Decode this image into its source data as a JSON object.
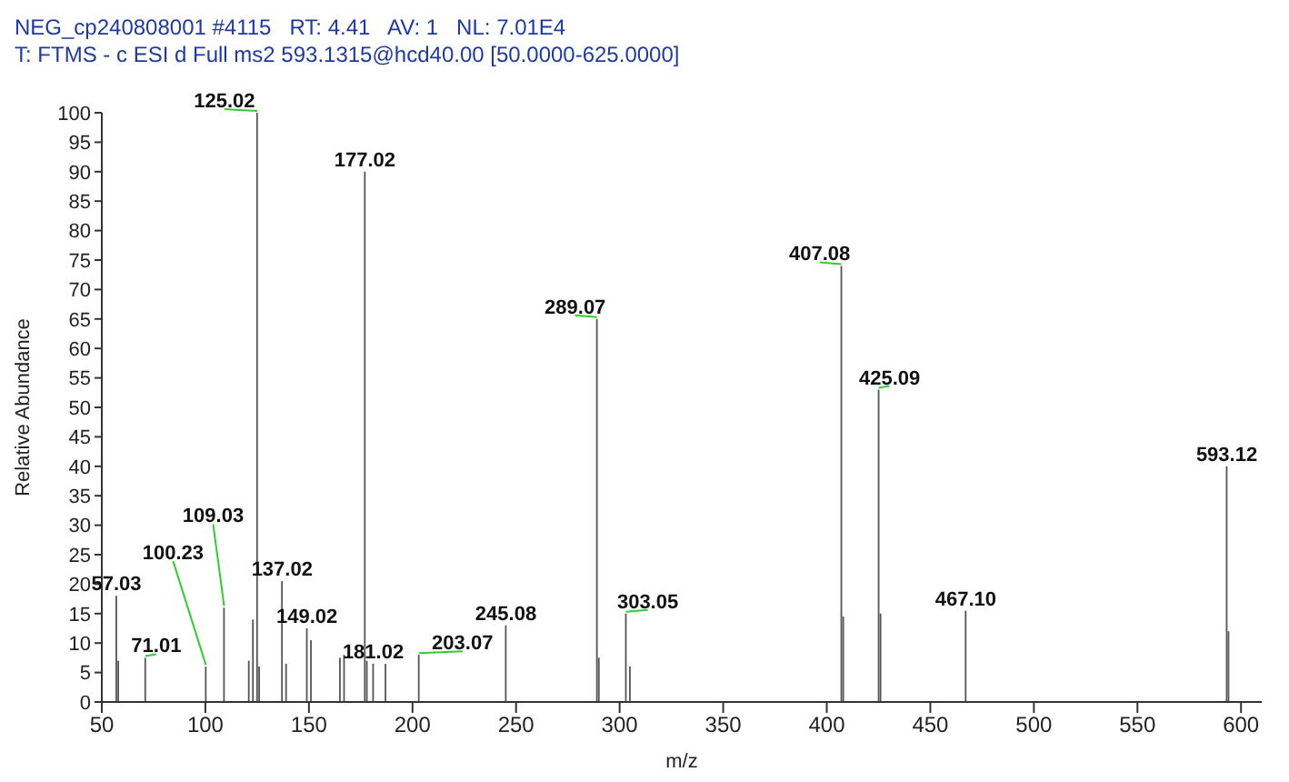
{
  "chart_data": {
    "type": "bar",
    "title": "NEG_cp240808001 #4115   RT: 4.41   AV: 1   NL: 7.01E4",
    "subtitle": "T: FTMS - c ESI d Full ms2 593.1315@hcd40.00 [50.0000-625.0000]",
    "xlabel": "m/z",
    "ylabel": "Relative Abundance",
    "color": "#555555",
    "x": [
      57.03,
      58,
      71.01,
      100.23,
      109.03,
      121,
      123,
      125.02,
      126,
      137.02,
      139,
      149.02,
      151,
      165,
      167,
      177.02,
      178,
      181.02,
      187,
      203.07,
      245.08,
      289.07,
      290,
      303.05,
      305,
      407.08,
      408,
      425.09,
      426,
      467.1,
      593.12,
      594
    ],
    "values": [
      18,
      7,
      7.5,
      6,
      16,
      7,
      14,
      100,
      6,
      20.5,
      6.5,
      12.5,
      10.5,
      7.5,
      8,
      90,
      7,
      6.5,
      6.5,
      8,
      13,
      65,
      7.5,
      15,
      6,
      74,
      14.5,
      53,
      15,
      15.5,
      40,
      12
    ],
    "xlim": [
      50,
      610
    ],
    "xticks": [
      50,
      100,
      150,
      200,
      250,
      300,
      350,
      400,
      450,
      500,
      550,
      600
    ],
    "ylim": [
      0,
      100
    ],
    "yticks": [
      0,
      5,
      10,
      15,
      20,
      25,
      30,
      35,
      40,
      45,
      50,
      55,
      60,
      65,
      70,
      75,
      80,
      85,
      90,
      95,
      100
    ],
    "grid": false,
    "legend": false,
    "annotations": [
      {
        "text": "57.03",
        "x": 57.03,
        "y": 18
      },
      {
        "text": "71.01",
        "x": 71.01,
        "y": 7.5
      },
      {
        "text": "100.23",
        "x": 100.23,
        "y": 6
      },
      {
        "text": "109.03",
        "x": 109.03,
        "y": 16
      },
      {
        "text": "125.02",
        "x": 125.02,
        "y": 100
      },
      {
        "text": "137.02",
        "x": 137.02,
        "y": 20.5
      },
      {
        "text": "149.02",
        "x": 149.02,
        "y": 12.5
      },
      {
        "text": "177.02",
        "x": 177.02,
        "y": 90
      },
      {
        "text": "181.02",
        "x": 181.02,
        "y": 6.5
      },
      {
        "text": "203.07",
        "x": 203.07,
        "y": 8
      },
      {
        "text": "245.08",
        "x": 245.08,
        "y": 13
      },
      {
        "text": "289.07",
        "x": 289.07,
        "y": 65
      },
      {
        "text": "303.05",
        "x": 303.05,
        "y": 15
      },
      {
        "text": "407.08",
        "x": 407.08,
        "y": 74
      },
      {
        "text": "425.09",
        "x": 425.09,
        "y": 53
      },
      {
        "text": "467.10",
        "x": 467.1,
        "y": 15.5
      },
      {
        "text": "593.12",
        "x": 593.12,
        "y": 40
      }
    ]
  }
}
